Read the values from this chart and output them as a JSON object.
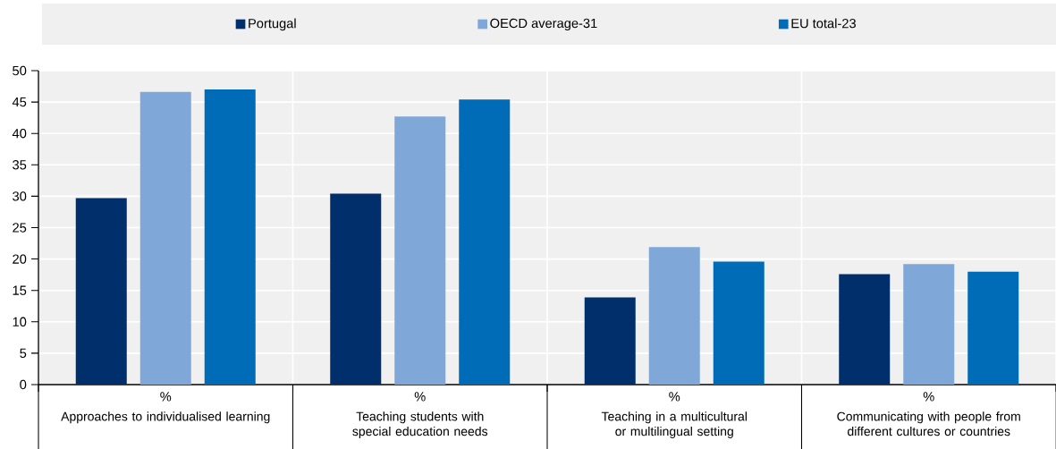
{
  "chart_data": {
    "type": "bar",
    "categories": [
      "Approaches to individualised learning",
      "Teaching students with special education needs",
      "Teaching in a multicultural or multilingual setting",
      "Communicating with people from different cultures or countries"
    ],
    "series": [
      {
        "name": "Portugal",
        "color": "#002f6c",
        "values": [
          29.7,
          30.4,
          13.9,
          17.6
        ]
      },
      {
        "name": "OECD average-31",
        "color": "#7fa8d9",
        "values": [
          46.6,
          42.7,
          21.9,
          19.2
        ]
      },
      {
        "name": "EU total-23",
        "color": "#006bb6",
        "values": [
          47.0,
          45.4,
          19.6,
          18.0
        ]
      }
    ],
    "annotations": [
      "%",
      "%",
      "%",
      "%"
    ],
    "ylim": [
      0,
      50
    ],
    "yticks": [
      0,
      5,
      10,
      15,
      20,
      25,
      30,
      35,
      40,
      45,
      50
    ],
    "grid": true,
    "legend": "top"
  }
}
